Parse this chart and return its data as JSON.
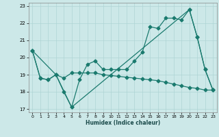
{
  "xlabel": "Humidex (Indice chaleur)",
  "ylabel": "",
  "xlim": [
    -0.5,
    23.5
  ],
  "ylim": [
    16.8,
    23.2
  ],
  "yticks": [
    17,
    18,
    19,
    20,
    21,
    22,
    23
  ],
  "xticks": [
    0,
    1,
    2,
    3,
    4,
    5,
    6,
    7,
    8,
    9,
    10,
    11,
    12,
    13,
    14,
    15,
    16,
    17,
    18,
    19,
    20,
    21,
    22,
    23
  ],
  "bg_color": "#cce8e8",
  "line_color": "#1a7a6e",
  "grid_color": "#aed4d4",
  "line1_x": [
    0,
    1,
    2,
    3,
    4,
    5,
    6,
    7,
    8,
    9,
    10,
    11,
    12,
    13,
    14,
    15,
    16,
    17,
    18,
    19,
    20,
    21,
    22,
    23
  ],
  "line1_y": [
    20.4,
    18.8,
    18.7,
    19.0,
    18.0,
    17.1,
    18.7,
    19.6,
    19.8,
    19.3,
    19.3,
    19.3,
    19.3,
    19.8,
    20.3,
    21.8,
    21.7,
    22.3,
    22.3,
    22.2,
    22.8,
    21.2,
    19.3,
    18.1
  ],
  "line2_x": [
    0,
    3,
    5,
    20,
    21,
    22,
    23
  ],
  "line2_y": [
    20.4,
    19.0,
    17.1,
    22.8,
    21.2,
    19.3,
    18.1
  ],
  "line3_x": [
    0,
    1,
    2,
    3,
    4,
    5,
    6,
    7,
    8,
    9,
    10,
    11,
    12,
    13,
    14,
    15,
    16,
    17,
    18,
    19,
    20,
    21,
    22,
    23
  ],
  "line3_y": [
    20.4,
    18.8,
    18.7,
    19.0,
    18.8,
    19.1,
    19.1,
    19.1,
    19.1,
    19.0,
    18.95,
    18.9,
    18.85,
    18.8,
    18.75,
    18.7,
    18.65,
    18.55,
    18.45,
    18.35,
    18.25,
    18.2,
    18.1,
    18.1
  ]
}
